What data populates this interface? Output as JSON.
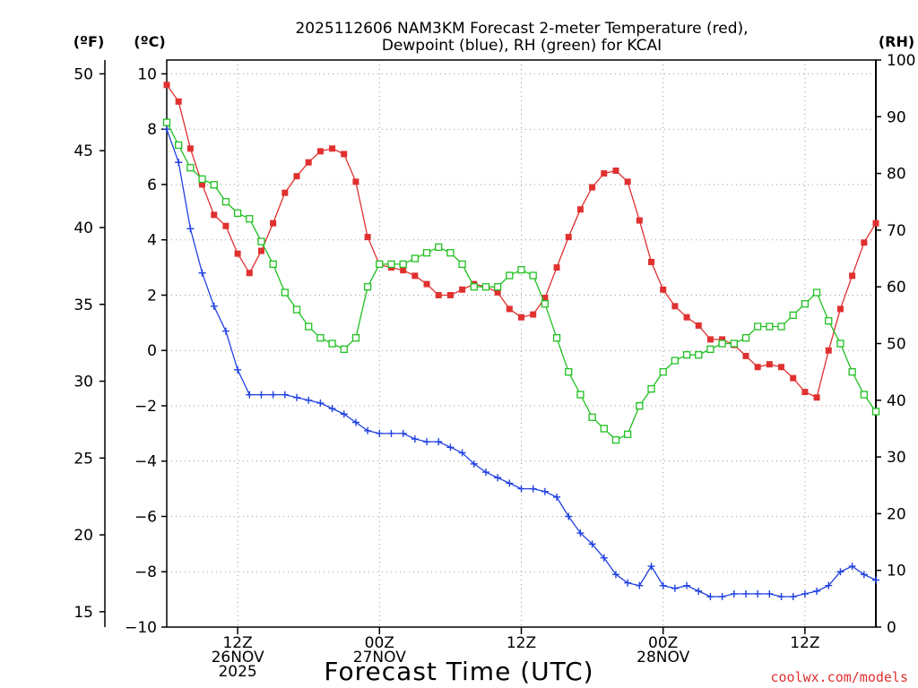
{
  "chart_data": {
    "type": "line",
    "title_lines": [
      "2025112606 NAM3KM Forecast 2-meter Temperature (red),",
      "Dewpoint (blue), RH (green) for KCAI"
    ],
    "units": {
      "fahrenheit": "(ºF)",
      "celsius": "(ºC)",
      "rh": "(RH)"
    },
    "xlabel": "Forecast Time (UTC)",
    "credit": "coolwx.com/models",
    "x_range_hours": [
      0,
      60
    ],
    "x_ticks": [
      {
        "hour": 6,
        "lines": [
          "12Z",
          "26NOV",
          "2025"
        ]
      },
      {
        "hour": 18,
        "lines": [
          "00Z",
          "27NOV"
        ]
      },
      {
        "hour": 30,
        "lines": [
          "12Z"
        ]
      },
      {
        "hour": 42,
        "lines": [
          "00Z",
          "28NOV"
        ]
      },
      {
        "hour": 54,
        "lines": [
          "12Z"
        ]
      }
    ],
    "y_celsius": {
      "range": [
        -10,
        10.5
      ],
      "ticks": [
        10,
        8,
        6,
        4,
        2,
        0,
        -2,
        -4,
        -6,
        -8,
        -10
      ],
      "tick_labels": [
        "10",
        "8",
        "6",
        "4",
        "2",
        "0",
        "−2",
        "−4",
        "−6",
        "−8",
        "−10"
      ]
    },
    "y_fahrenheit": {
      "ticks": [
        50,
        45,
        40,
        35,
        30,
        25,
        20,
        15
      ],
      "tick_labels": [
        "50",
        "45",
        "40",
        "35",
        "30",
        "25",
        "20",
        "15"
      ]
    },
    "y_rh": {
      "range": [
        0,
        100
      ],
      "ticks": [
        100,
        90,
        80,
        70,
        60,
        50,
        40,
        30,
        20,
        10,
        0
      ],
      "tick_labels": [
        "100",
        "90",
        "80",
        "70",
        "60",
        "50",
        "40",
        "30",
        "20",
        "10",
        "0"
      ]
    },
    "grid": true,
    "series": [
      {
        "name": "Temperature",
        "unit": "C",
        "color": "#e03030",
        "marker": "filled-square",
        "values": [
          9.6,
          9.0,
          7.3,
          6.0,
          4.9,
          4.5,
          3.5,
          2.8,
          3.6,
          4.6,
          5.7,
          6.3,
          6.8,
          7.2,
          7.3,
          7.1,
          6.1,
          4.1,
          3.1,
          3.0,
          2.9,
          2.7,
          2.4,
          2.0,
          2.0,
          2.2,
          2.4,
          2.3,
          2.1,
          1.5,
          1.2,
          1.3,
          1.9,
          3.0,
          4.1,
          5.1,
          5.9,
          6.4,
          6.5,
          6.1,
          4.7,
          3.2,
          2.2,
          1.6,
          1.2,
          0.9,
          0.4,
          0.4,
          0.2,
          -0.2,
          -0.6,
          -0.5,
          -0.6,
          -1.0,
          -1.5,
          -1.7,
          0.0,
          1.5,
          2.7,
          3.9,
          4.6
        ]
      },
      {
        "name": "Dewpoint",
        "unit": "C",
        "color": "#2040e0",
        "marker": "plus",
        "values": [
          8.0,
          6.8,
          4.4,
          2.8,
          1.6,
          0.7,
          -0.7,
          -1.6,
          -1.6,
          -1.6,
          -1.6,
          -1.7,
          -1.8,
          -1.9,
          -2.1,
          -2.3,
          -2.6,
          -2.9,
          -3.0,
          -3.0,
          -3.0,
          -3.2,
          -3.3,
          -3.3,
          -3.5,
          -3.7,
          -4.1,
          -4.4,
          -4.6,
          -4.8,
          -5.0,
          -5.0,
          -5.1,
          -5.3,
          -6.0,
          -6.6,
          -7.0,
          -7.5,
          -8.1,
          -8.4,
          -8.5,
          -7.8,
          -8.5,
          -8.6,
          -8.5,
          -8.7,
          -8.9,
          -8.9,
          -8.8,
          -8.8,
          -8.8,
          -8.8,
          -8.9,
          -8.9,
          -8.8,
          -8.7,
          -8.5,
          -8.0,
          -7.8,
          -8.1,
          -8.3
        ]
      },
      {
        "name": "RH",
        "unit": "%",
        "color": "#20c020",
        "marker": "open-square",
        "values": [
          89,
          85,
          81,
          79,
          78,
          75,
          73,
          72,
          68,
          64,
          59,
          56,
          53,
          51,
          50,
          49,
          51,
          60,
          64,
          64,
          64,
          65,
          66,
          67,
          66,
          64,
          60,
          60,
          60,
          62,
          63,
          62,
          57,
          51,
          45,
          41,
          37,
          35,
          33,
          34,
          39,
          42,
          45,
          47,
          48,
          48,
          49,
          50,
          50,
          51,
          53,
          53,
          53,
          55,
          57,
          59,
          54,
          50,
          45,
          41,
          38
        ]
      }
    ]
  }
}
